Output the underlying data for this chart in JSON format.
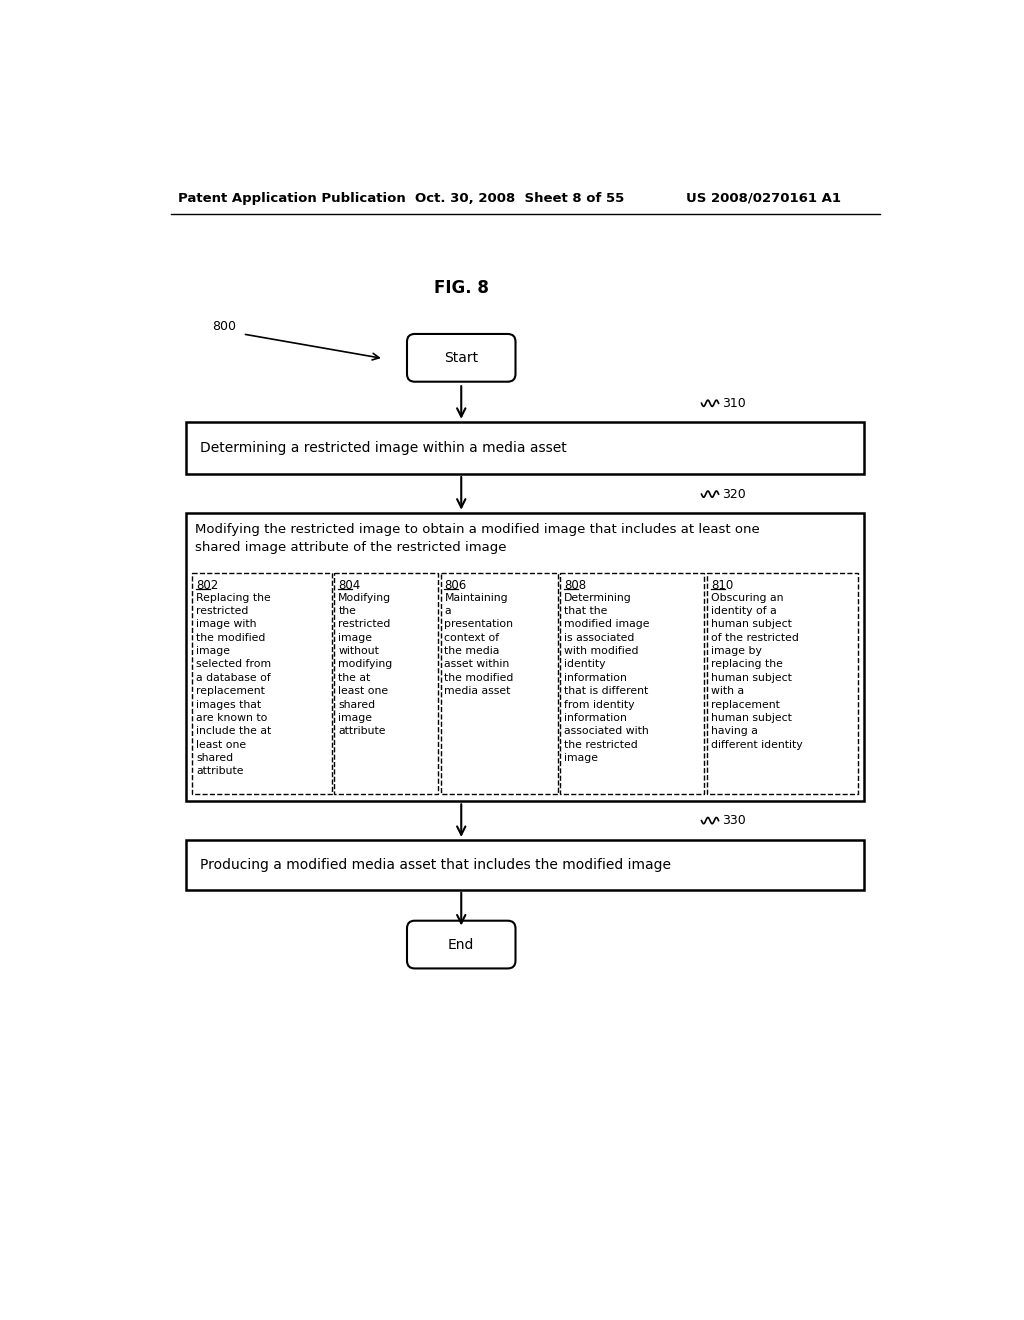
{
  "title": "FIG. 8",
  "header_left": "Patent Application Publication",
  "header_center": "Oct. 30, 2008  Sheet 8 of 55",
  "header_right": "US 2008/0270161 A1",
  "fig_label": "800",
  "box310_label": "310",
  "box320_label": "320",
  "box330_label": "330",
  "start_text": "Start",
  "end_text": "End",
  "box310_text": "Determining a restricted image within a media asset",
  "box320_text": "Modifying the restricted image to obtain a modified image that includes at least one\nshared image attribute of the restricted image",
  "box330_text": "Producing a modified media asset that includes the modified image",
  "sub802_label": "802",
  "sub802_text": "Replacing the\nrestricted\nimage with\nthe modified\nimage\nselected from\na database of\nreplacement\nimages that\nare known to\ninclude the at\nleast one\nshared\nattribute",
  "sub804_label": "804",
  "sub804_text": "Modifying\nthe\nrestricted\nimage\nwithout\nmodifying\nthe at\nleast one\nshared\nimage\nattribute",
  "sub806_label": "806",
  "sub806_text": "Maintaining\na\npresentation\ncontext of\nthe media\nasset within\nthe modified\nmedia asset",
  "sub808_label": "808",
  "sub808_text": "Determining\nthat the\nmodified image\nis associated\nwith modified\nidentity\ninformation\nthat is different\nfrom identity\ninformation\nassociated with\nthe restricted\nimage",
  "sub810_label": "810",
  "sub810_text": "Obscuring an\nidentity of a\nhuman subject\nof the restricted\nimage by\nreplacing the\nhuman subject\nwith a\nreplacement\nhuman subject\nhaving a\ndifferent identity",
  "bg_color": "#ffffff",
  "text_color": "#000000",
  "line_color": "#000000"
}
